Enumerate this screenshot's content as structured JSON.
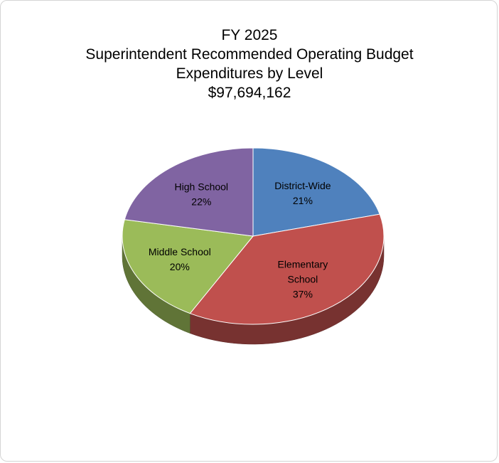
{
  "chart_data": {
    "type": "pie",
    "title_lines": [
      "FY 2025",
      "Superintendent Recommended Operating Budget",
      "Expenditures by Level",
      "$97,694,162"
    ],
    "slices": [
      {
        "label": "District-Wide",
        "label_lines": [
          "District-Wide"
        ],
        "value": 21,
        "value_label": "21%",
        "color": "#4f81bd"
      },
      {
        "label": "Elementary School",
        "label_lines": [
          "Elementary",
          "School"
        ],
        "value": 37,
        "value_label": "37%",
        "color": "#c0504d"
      },
      {
        "label": "Middle School",
        "label_lines": [
          "Middle School"
        ],
        "value": 20,
        "value_label": "20%",
        "color": "#9bbb59"
      },
      {
        "label": "High School",
        "label_lines": [
          "High School"
        ],
        "value": 22,
        "value_label": "22%",
        "color": "#8064a2"
      }
    ]
  }
}
